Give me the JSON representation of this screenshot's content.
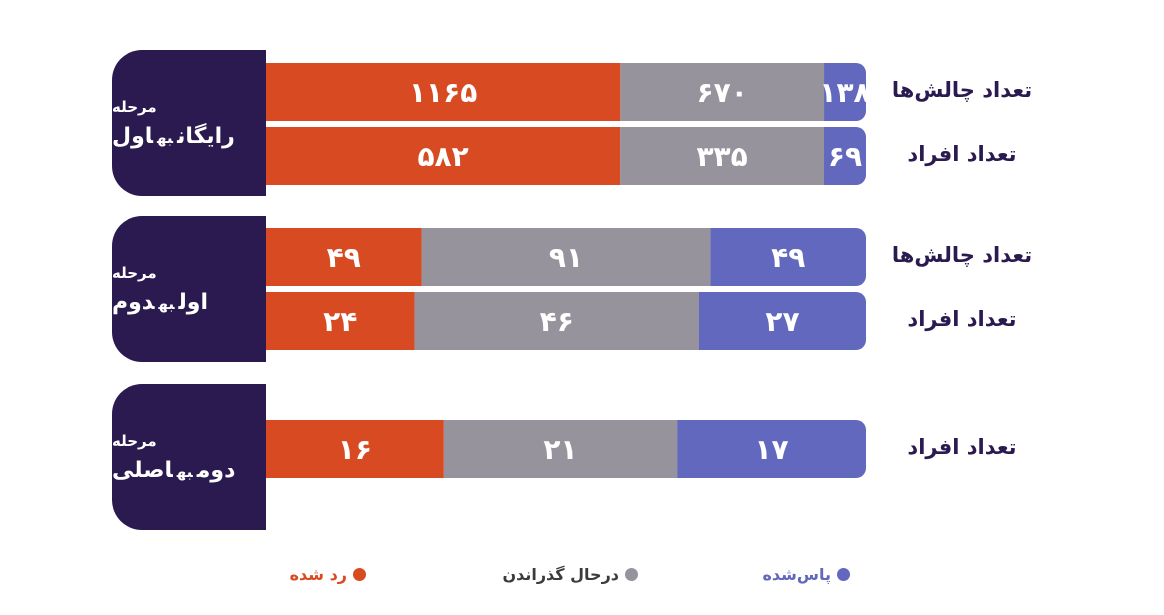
{
  "colors": {
    "passed": "#6168bd",
    "in_progress": "#97939d",
    "rejected": "#d84b22",
    "stage_box": "#2a1a4f",
    "row_label": "#2a1a4f"
  },
  "stages": [
    {
      "label": "مرحله",
      "title_a": "رایگان",
      "connector": "به",
      "title_b": "اول",
      "rows": [
        {
          "label": "تعداد چالش‌ها",
          "passed_text": "۱۳۸",
          "in_progress_text": "۶۷۰",
          "rejected_text": "۱۱۶۵"
        },
        {
          "label": "تعداد افراد",
          "passed_text": "۶۹",
          "in_progress_text": "۳۳۵",
          "rejected_text": "۵۸۲"
        }
      ]
    },
    {
      "label": "مرحله",
      "title_a": "اول",
      "connector": "به",
      "title_b": "دوم",
      "rows": [
        {
          "label": "تعداد چالش‌ها",
          "passed_text": "۴۹",
          "in_progress_text": "۹۱",
          "rejected_text": "۴۹"
        },
        {
          "label": "تعداد افراد",
          "passed_text": "۲۷",
          "in_progress_text": "۴۶",
          "rejected_text": "۲۴"
        }
      ]
    },
    {
      "label": "مرحله",
      "title_a": "دوم",
      "connector": "به",
      "title_b": "اصلی",
      "rows": [
        {
          "label": "تعداد افراد",
          "passed_text": "۱۷",
          "in_progress_text": "۲۱",
          "rejected_text": "۱۶"
        }
      ]
    }
  ],
  "legend": {
    "passed": "پاس‌شده",
    "in_progress": "درحال گذراندن",
    "rejected": "رد شده"
  },
  "chart_data": {
    "type": "bar",
    "stacked": true,
    "orientation": "horizontal",
    "categories": [
      "رایگان به اول — تعداد چالش‌ها",
      "رایگان به اول — تعداد افراد",
      "اول به دوم — تعداد چالش‌ها",
      "اول به دوم — تعداد افراد",
      "دوم به اصلی — تعداد افراد"
    ],
    "series": [
      {
        "name": "پاس‌شده",
        "values": [
          138,
          69,
          49,
          27,
          17
        ]
      },
      {
        "name": "درحال گذراندن",
        "values": [
          670,
          335,
          91,
          46,
          21
        ]
      },
      {
        "name": "رد شده",
        "values": [
          1165,
          582,
          49,
          24,
          16
        ]
      }
    ],
    "legend_position": "bottom",
    "grid": false
  }
}
